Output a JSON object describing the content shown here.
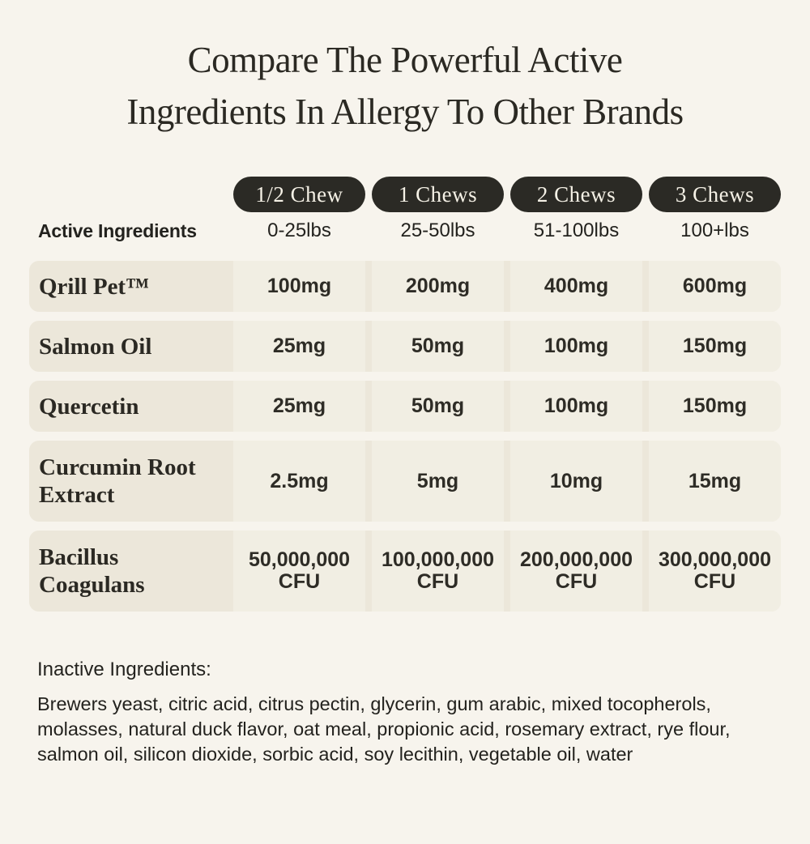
{
  "title": {
    "line1": "Compare The Powerful Active",
    "line2": "Ingredients In Allergy To Other Brands"
  },
  "chart_data": {
    "type": "table",
    "title": "Compare The Powerful Active Ingredients In Allergy To Other Brands",
    "header": {
      "ingredient_col_label": "Active Ingredients",
      "columns": [
        {
          "chew": "1/2 Chew",
          "weight": "0-25lbs"
        },
        {
          "chew": "1 Chews",
          "weight": "25-50lbs"
        },
        {
          "chew": "2 Chews",
          "weight": "51-100lbs"
        },
        {
          "chew": "3 Chews",
          "weight": "100+lbs"
        }
      ]
    },
    "rows": [
      {
        "name": "Qrill Pet™",
        "values": [
          "100mg",
          "200mg",
          "400mg",
          "600mg"
        ],
        "tall": false
      },
      {
        "name": "Salmon Oil",
        "values": [
          "25mg",
          "50mg",
          "100mg",
          "150mg"
        ],
        "tall": false
      },
      {
        "name": "Quercetin",
        "values": [
          "25mg",
          "50mg",
          "100mg",
          "150mg"
        ],
        "tall": false
      },
      {
        "name": "Curcumin Root Extract",
        "values": [
          "2.5mg",
          "5mg",
          "10mg",
          "15mg"
        ],
        "tall": true
      },
      {
        "name": "Bacillus Coagulans",
        "values": [
          "50,000,000\nCFU",
          "100,000,000\nCFU",
          "200,000,000\nCFU",
          "300,000,000\nCFU"
        ],
        "tall": true
      }
    ]
  },
  "footer": {
    "heading": "Inactive Ingredients:",
    "text": "Brewers yeast, citric acid, citrus pectin, glycerin, gum arabic, mixed tocopherols, molasses, natural duck flavor, oat meal, propionic acid, rosemary extract, rye flour, salmon oil, silicon dioxide, sorbic acid, soy lecithin, vegetable oil, water"
  },
  "colors": {
    "page_background": "#f7f4ed",
    "row_background": "#ece7da",
    "value_cell_background": "#f1eee3",
    "pill_background": "#2b2a25",
    "pill_text": "#f5f1e6",
    "ink": "#2b2923"
  }
}
